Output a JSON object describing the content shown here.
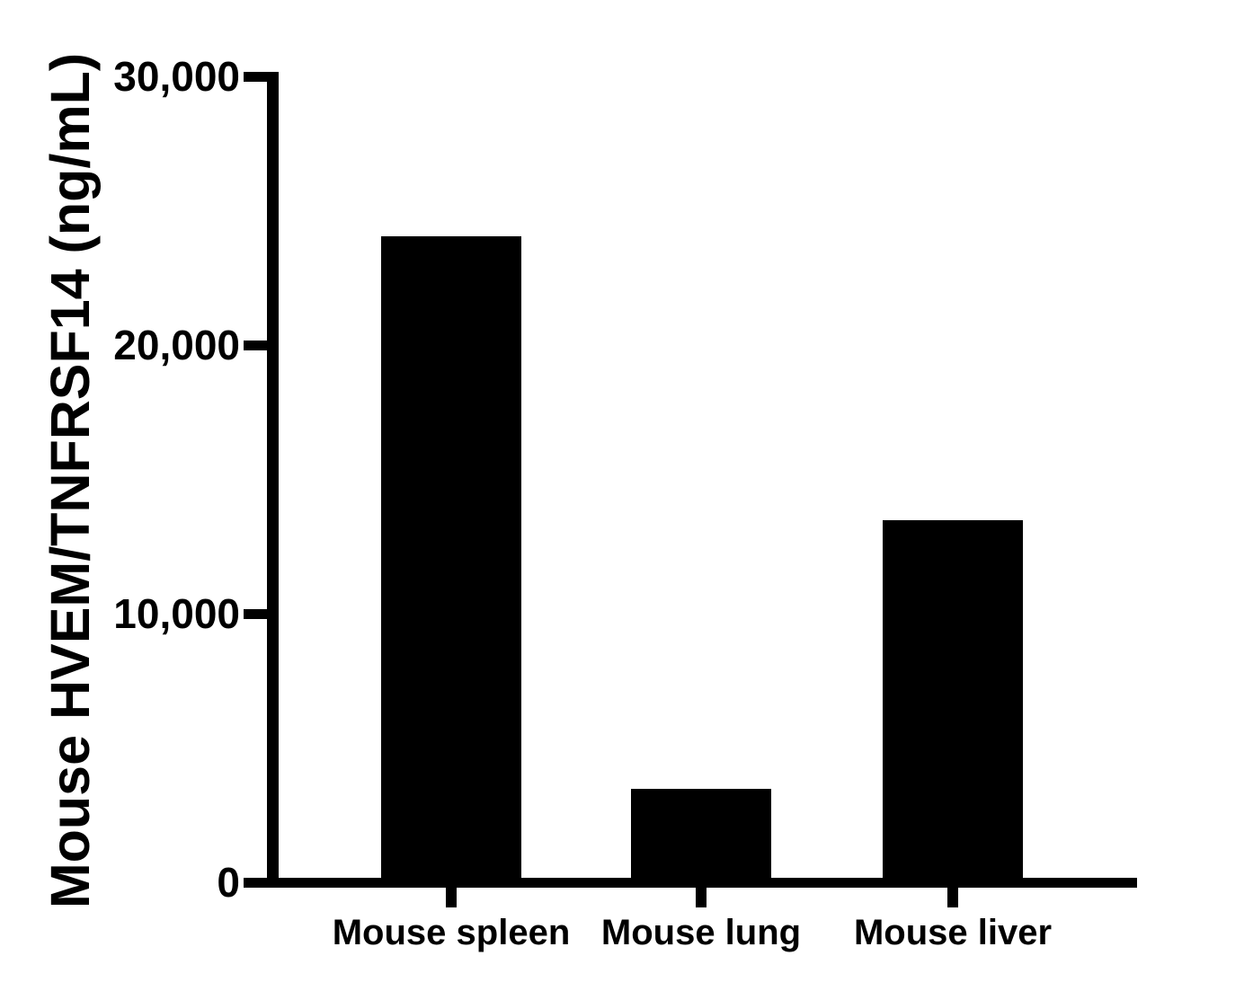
{
  "chart_data": {
    "type": "bar",
    "categories": [
      "Mouse spleen",
      "Mouse lung",
      "Mouse liver"
    ],
    "values": [
      24060,
      3470,
      13480
    ],
    "title": "",
    "xlabel": "",
    "ylabel": "Mouse HVEM/TNFRSF14 (ng/mL)",
    "ylim": [
      0,
      30000
    ],
    "yticks": [
      0,
      10000,
      20000,
      30000
    ],
    "ytick_labels": [
      "0",
      "10,000",
      "20,000",
      "30,000"
    ],
    "bar_color": "#000000",
    "axis_color": "#000000",
    "background_color": "#FFFFFF",
    "grid": false,
    "legend": false
  }
}
